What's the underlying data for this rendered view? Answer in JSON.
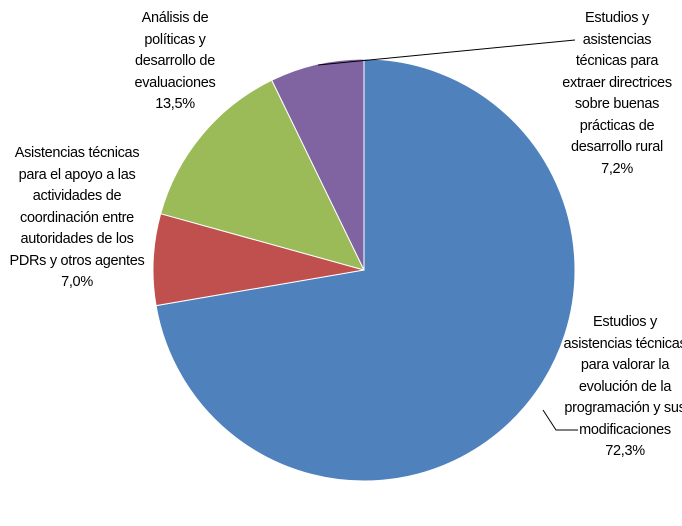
{
  "chart_data": {
    "type": "pie",
    "categories": [
      "Estudios y asistencias técnicas para valorar la evolución de la programación y sus modificaciones",
      "Asistencias técnicas para el apoyo a las actividades de coordinación entre autoridades de los PDRs y otros agentes",
      "Análisis de políticas y desarrollo de evaluaciones",
      "Estudios y asistencias técnicas para extraer directrices sobre buenas prácticas de desarrollo rural"
    ],
    "values": [
      72.3,
      7.0,
      13.5,
      7.2
    ],
    "value_labels": [
      "72,3%",
      "7,0%",
      "13,5%",
      "7,2%"
    ],
    "colors": [
      "#4f81bd",
      "#c0504d",
      "#9bbb59",
      "#8064a2"
    ]
  }
}
